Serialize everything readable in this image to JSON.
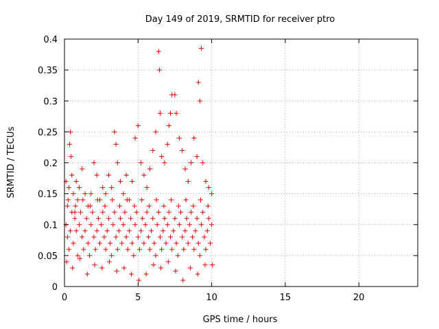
{
  "chart_data": {
    "type": "scatter",
    "title": "Day 149 of 2019, SRMTID for receiver ptro",
    "xlabel": "GPS time / hours",
    "ylabel": "SRMTID / TECUs",
    "xlim": [
      0,
      24
    ],
    "ylim": [
      0,
      0.4
    ],
    "xticks": [
      0,
      5,
      10,
      15,
      20
    ],
    "xtick_labels": [
      "0",
      "5",
      "10",
      "15",
      "20"
    ],
    "yticks": [
      0,
      0.05,
      0.1,
      0.15,
      0.2,
      0.25,
      0.3,
      0.35,
      0.4
    ],
    "ytick_labels": [
      "0",
      "0.05",
      "0.1",
      "0.15",
      "0.2",
      "0.25",
      "0.3",
      "0.35",
      "0.4"
    ],
    "grid": true,
    "marker": "plus",
    "color": "#e00000",
    "series": [
      {
        "points": [
          [
            0.1,
            0.17
          ],
          [
            0.2,
            0.13
          ],
          [
            0.3,
            0.16
          ],
          [
            0.35,
            0.23
          ],
          [
            0.4,
            0.25
          ],
          [
            0.45,
            0.21
          ],
          [
            0.5,
            0.18
          ],
          [
            0.6,
            0.15
          ],
          [
            0.7,
            0.12
          ],
          [
            0.8,
            0.17
          ],
          [
            0.9,
            0.14
          ],
          [
            1.0,
            0.16
          ],
          [
            1.2,
            0.19
          ],
          [
            1.4,
            0.15
          ],
          [
            1.6,
            0.13
          ],
          [
            1.8,
            0.15
          ],
          [
            2.0,
            0.2
          ],
          [
            2.2,
            0.18
          ],
          [
            2.4,
            0.14
          ],
          [
            2.6,
            0.16
          ],
          [
            2.8,
            0.15
          ],
          [
            3.0,
            0.18
          ],
          [
            3.2,
            0.16
          ],
          [
            3.4,
            0.25
          ],
          [
            3.5,
            0.23
          ],
          [
            3.6,
            0.2
          ],
          [
            3.8,
            0.17
          ],
          [
            4.0,
            0.15
          ],
          [
            4.2,
            0.18
          ],
          [
            4.4,
            0.14
          ],
          [
            4.6,
            0.17
          ],
          [
            4.8,
            0.24
          ],
          [
            5.0,
            0.26
          ],
          [
            5.2,
            0.2
          ],
          [
            5.4,
            0.18
          ],
          [
            5.6,
            0.16
          ],
          [
            5.8,
            0.19
          ],
          [
            6.0,
            0.22
          ],
          [
            6.2,
            0.25
          ],
          [
            6.4,
            0.38
          ],
          [
            6.45,
            0.35
          ],
          [
            6.5,
            0.28
          ],
          [
            6.6,
            0.21
          ],
          [
            6.8,
            0.2
          ],
          [
            7.0,
            0.23
          ],
          [
            7.1,
            0.26
          ],
          [
            7.2,
            0.28
          ],
          [
            7.3,
            0.31
          ],
          [
            7.5,
            0.31
          ],
          [
            7.6,
            0.28
          ],
          [
            7.8,
            0.24
          ],
          [
            8.0,
            0.22
          ],
          [
            8.2,
            0.19
          ],
          [
            8.4,
            0.17
          ],
          [
            8.6,
            0.2
          ],
          [
            8.8,
            0.24
          ],
          [
            9.0,
            0.21
          ],
          [
            9.1,
            0.33
          ],
          [
            9.2,
            0.3
          ],
          [
            9.3,
            0.385
          ],
          [
            9.4,
            0.2
          ],
          [
            9.6,
            0.17
          ],
          [
            9.8,
            0.16
          ],
          [
            10.0,
            0.15
          ],
          [
            0.1,
            0.1
          ],
          [
            0.2,
            0.08
          ],
          [
            0.3,
            0.06
          ],
          [
            0.4,
            0.09
          ],
          [
            0.5,
            0.12
          ],
          [
            0.6,
            0.07
          ],
          [
            0.7,
            0.11
          ],
          [
            0.8,
            0.09
          ],
          [
            0.9,
            0.05
          ],
          [
            1.0,
            0.1
          ],
          [
            1.1,
            0.12
          ],
          [
            1.2,
            0.08
          ],
          [
            1.3,
            0.06
          ],
          [
            1.4,
            0.09
          ],
          [
            1.5,
            0.11
          ],
          [
            1.6,
            0.07
          ],
          [
            1.7,
            0.05
          ],
          [
            1.8,
            0.1
          ],
          [
            1.9,
            0.12
          ],
          [
            2.0,
            0.08
          ],
          [
            2.1,
            0.06
          ],
          [
            2.2,
            0.09
          ],
          [
            2.3,
            0.11
          ],
          [
            2.4,
            0.07
          ],
          [
            2.5,
            0.1
          ],
          [
            2.6,
            0.12
          ],
          [
            2.7,
            0.08
          ],
          [
            2.8,
            0.06
          ],
          [
            2.9,
            0.09
          ],
          [
            3.0,
            0.11
          ],
          [
            3.1,
            0.07
          ],
          [
            3.2,
            0.05
          ],
          [
            3.3,
            0.1
          ],
          [
            3.4,
            0.12
          ],
          [
            3.5,
            0.08
          ],
          [
            3.6,
            0.06
          ],
          [
            3.7,
            0.09
          ],
          [
            3.8,
            0.11
          ],
          [
            3.9,
            0.07
          ],
          [
            4.0,
            0.1
          ],
          [
            4.1,
            0.12
          ],
          [
            4.2,
            0.08
          ],
          [
            4.3,
            0.06
          ],
          [
            4.4,
            0.09
          ],
          [
            4.5,
            0.11
          ],
          [
            4.6,
            0.07
          ],
          [
            4.7,
            0.05
          ],
          [
            4.8,
            0.1
          ],
          [
            4.9,
            0.12
          ],
          [
            5.0,
            0.08
          ],
          [
            5.1,
            0.06
          ],
          [
            5.2,
            0.09
          ],
          [
            5.3,
            0.11
          ],
          [
            5.4,
            0.07
          ],
          [
            5.5,
            0.1
          ],
          [
            5.6,
            0.12
          ],
          [
            5.7,
            0.08
          ],
          [
            5.8,
            0.06
          ],
          [
            5.9,
            0.09
          ],
          [
            6.0,
            0.11
          ],
          [
            6.1,
            0.07
          ],
          [
            6.2,
            0.05
          ],
          [
            6.3,
            0.1
          ],
          [
            6.4,
            0.12
          ],
          [
            6.5,
            0.08
          ],
          [
            6.6,
            0.06
          ],
          [
            6.7,
            0.09
          ],
          [
            6.8,
            0.11
          ],
          [
            6.9,
            0.07
          ],
          [
            7.0,
            0.1
          ],
          [
            7.1,
            0.12
          ],
          [
            7.2,
            0.08
          ],
          [
            7.3,
            0.06
          ],
          [
            7.4,
            0.09
          ],
          [
            7.5,
            0.11
          ],
          [
            7.6,
            0.07
          ],
          [
            7.7,
            0.05
          ],
          [
            7.8,
            0.1
          ],
          [
            7.9,
            0.12
          ],
          [
            8.0,
            0.08
          ],
          [
            8.1,
            0.06
          ],
          [
            8.2,
            0.09
          ],
          [
            8.3,
            0.11
          ],
          [
            8.4,
            0.07
          ],
          [
            8.5,
            0.1
          ],
          [
            8.6,
            0.12
          ],
          [
            8.7,
            0.08
          ],
          [
            8.8,
            0.06
          ],
          [
            8.9,
            0.09
          ],
          [
            9.0,
            0.11
          ],
          [
            9.1,
            0.07
          ],
          [
            9.2,
            0.05
          ],
          [
            9.3,
            0.1
          ],
          [
            9.4,
            0.12
          ],
          [
            9.5,
            0.08
          ],
          [
            9.6,
            0.06
          ],
          [
            9.7,
            0.09
          ],
          [
            9.8,
            0.11
          ],
          [
            9.9,
            0.07
          ],
          [
            10.0,
            0.1
          ],
          [
            0.15,
            0.04
          ],
          [
            0.55,
            0.03
          ],
          [
            1.05,
            0.045
          ],
          [
            1.55,
            0.02
          ],
          [
            2.05,
            0.035
          ],
          [
            2.55,
            0.03
          ],
          [
            3.05,
            0.04
          ],
          [
            3.55,
            0.025
          ],
          [
            4.05,
            0.03
          ],
          [
            4.55,
            0.02
          ],
          [
            5.05,
            0.01
          ],
          [
            5.55,
            0.02
          ],
          [
            6.05,
            0.035
          ],
          [
            6.55,
            0.03
          ],
          [
            7.05,
            0.04
          ],
          [
            7.55,
            0.025
          ],
          [
            8.05,
            0.01
          ],
          [
            8.55,
            0.03
          ],
          [
            9.05,
            0.02
          ],
          [
            9.55,
            0.035
          ],
          [
            10.05,
            0.035
          ],
          [
            0.25,
            0.14
          ],
          [
            0.75,
            0.13
          ],
          [
            1.25,
            0.14
          ],
          [
            1.75,
            0.13
          ],
          [
            2.25,
            0.14
          ],
          [
            2.75,
            0.13
          ],
          [
            3.25,
            0.14
          ],
          [
            3.75,
            0.13
          ],
          [
            4.25,
            0.14
          ],
          [
            4.75,
            0.13
          ],
          [
            5.25,
            0.14
          ],
          [
            5.75,
            0.13
          ],
          [
            6.25,
            0.14
          ],
          [
            6.75,
            0.13
          ],
          [
            7.25,
            0.14
          ],
          [
            7.75,
            0.13
          ],
          [
            8.25,
            0.14
          ],
          [
            8.75,
            0.13
          ],
          [
            9.25,
            0.14
          ],
          [
            9.75,
            0.13
          ]
        ]
      }
    ]
  }
}
